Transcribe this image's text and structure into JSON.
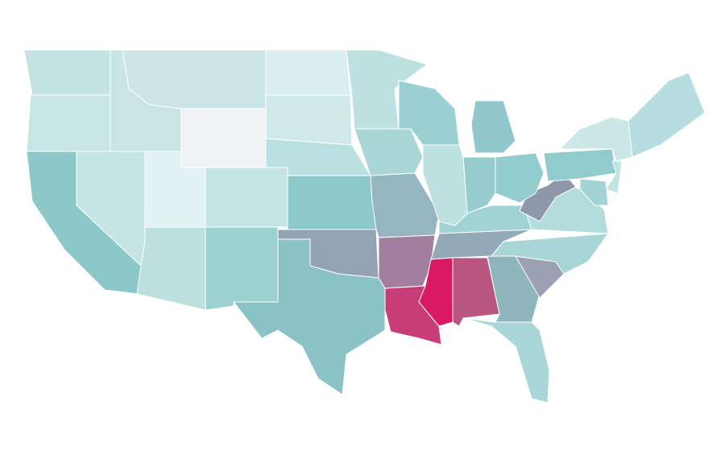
{
  "map": {
    "region_colors": [
      "#c5e3e3",
      "#c8e5e5",
      "#8cc8ca",
      "#c6e4e4",
      "#c8e4e4",
      "#cce6e7",
      "#f0f2f3",
      "#e2f2f3",
      "#c5e4e4",
      "#bcdfe0",
      "#9dd0d1",
      "#d9eef1",
      "#cfe8e8",
      "#bbe0e1",
      "#8dc9cb",
      "#94a3b3",
      "#8ac2c6",
      "#bde0e1",
      "#aad6d7",
      "#95b6c0",
      "#a27f9e",
      "#c83d77",
      "#d91a63",
      "#b9567f",
      "#8fb5bd",
      "#a9d6d8",
      "#9ca0b3",
      "#a8d6d7",
      "#93a9b8",
      "#a1d2d4",
      "#b3dcdd",
      "#8f97ab",
      "#92cccf",
      "#97cccf",
      "#bde0e1",
      "#9ad0d2",
      "#92c8cb",
      "#92cbcd",
      "#cce7e7",
      "#b6dee0",
      "#bfe2e3",
      "#a4d3d5"
    ]
  }
}
